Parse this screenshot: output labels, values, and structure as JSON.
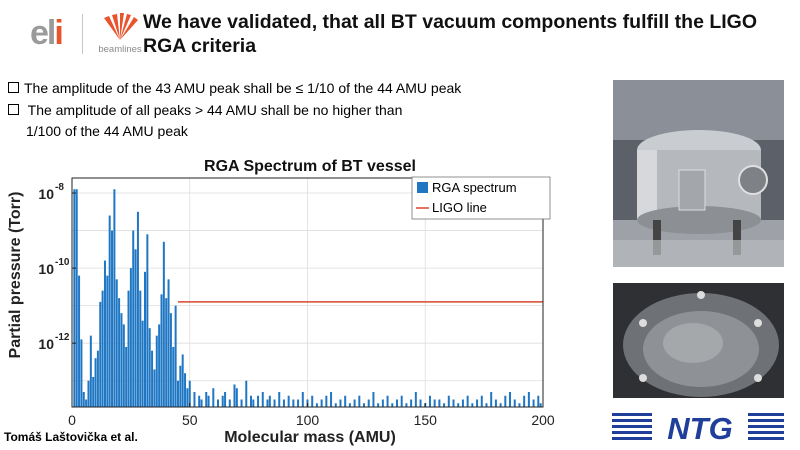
{
  "header": {
    "title": "We have validated, that all BT vacuum components fulfill the LIGO RGA criteria",
    "eli_logo_text_a": "el",
    "eli_logo_text_b": "i",
    "beamlines_label": "beamlines"
  },
  "bullets": [
    "The amplitude of the 43 AMU peak shall be  ≤ 1/10 of the 44 AMU peak",
    " The amplitude of all peaks > 44 AMU shall be  no higher than",
    "1/100 of the 44 AMU peak"
  ],
  "footer": {
    "author": "Tomáš Laštovička et al.",
    "ntg_logo": "NTG"
  },
  "colors": {
    "bars": "#1f77c4",
    "ligo_line": "#d9472b",
    "eli_accent": "#e8542c"
  },
  "chart_data": {
    "type": "bar",
    "title": "RGA Spectrum of BT vessel",
    "xlabel": "Molecular mass (AMU)",
    "ylabel": "Partial pressure (Torr)",
    "xlim": [
      0,
      200
    ],
    "ylim_log10": [
      -13.7,
      -7.6
    ],
    "y_scale": "log",
    "x_ticks": [
      "0",
      "50",
      "100",
      "150",
      "200"
    ],
    "y_ticks": [
      {
        "label": "10",
        "exp": "-8"
      },
      {
        "label": "10",
        "exp": "-10"
      },
      {
        "label": "10",
        "exp": "-12"
      }
    ],
    "grid": true,
    "legend": "top-right",
    "series": [
      {
        "name": "RGA spectrum",
        "kind": "bar",
        "x": [
          1,
          2,
          3,
          4,
          5,
          6,
          7,
          8,
          9,
          10,
          11,
          12,
          13,
          14,
          15,
          16,
          17,
          18,
          19,
          20,
          21,
          22,
          23,
          24,
          25,
          26,
          27,
          28,
          29,
          30,
          31,
          32,
          33,
          34,
          35,
          36,
          37,
          38,
          39,
          40,
          41,
          42,
          43,
          44,
          45,
          46,
          47,
          48,
          49,
          50,
          52,
          54,
          55,
          57,
          58,
          60,
          62,
          64,
          65,
          67,
          69,
          70,
          72,
          74,
          76,
          77,
          79,
          81,
          83,
          84,
          86,
          88,
          90,
          92,
          94,
          96,
          98,
          100,
          102,
          104,
          106,
          108,
          110,
          112,
          114,
          116,
          118,
          120,
          122,
          124,
          126,
          128,
          130,
          132,
          134,
          136,
          138,
          140,
          142,
          144,
          146,
          148,
          150,
          152,
          154,
          156,
          158,
          160,
          162,
          164,
          166,
          168,
          170,
          172,
          174,
          176,
          178,
          180,
          182,
          184,
          186,
          188,
          190,
          192,
          194,
          196,
          198,
          199
        ],
        "log10_values": [
          -7.9,
          -7.9,
          -10.2,
          -11.9,
          -13.3,
          -13.5,
          -13.0,
          -11.8,
          -12.9,
          -12.4,
          -12.2,
          -10.9,
          -10.6,
          -9.8,
          -10.2,
          -8.6,
          -9.0,
          -7.9,
          -10.3,
          -10.8,
          -11.2,
          -11.5,
          -12.1,
          -10.6,
          -10.0,
          -9.0,
          -9.5,
          -8.5,
          -10.6,
          -11.4,
          -10.1,
          -9.1,
          -11.6,
          -12.2,
          -12.7,
          -11.8,
          -11.5,
          -10.7,
          -9.3,
          -10.8,
          -10.3,
          -11.2,
          -12.1,
          -11.0,
          -13.0,
          -12.6,
          -12.3,
          -12.8,
          -13.2,
          -13.0,
          -13.3,
          -13.4,
          -13.5,
          -13.3,
          -13.4,
          -13.2,
          -13.5,
          -13.4,
          -13.3,
          -13.5,
          -13.1,
          -13.2,
          -13.5,
          -13.0,
          -13.4,
          -13.5,
          -13.4,
          -13.3,
          -13.5,
          -13.4,
          -13.5,
          -13.3,
          -13.5,
          -13.4,
          -13.5,
          -13.5,
          -13.3,
          -13.5,
          -13.4,
          -13.6,
          -13.5,
          -13.4,
          -13.3,
          -13.6,
          -13.5,
          -13.4,
          -13.6,
          -13.5,
          -13.4,
          -13.6,
          -13.5,
          -13.3,
          -13.6,
          -13.5,
          -13.4,
          -13.6,
          -13.5,
          -13.4,
          -13.6,
          -13.5,
          -13.3,
          -13.5,
          -13.6,
          -13.4,
          -13.5,
          -13.5,
          -13.6,
          -13.4,
          -13.5,
          -13.6,
          -13.5,
          -13.4,
          -13.6,
          -13.5,
          -13.4,
          -13.6,
          -13.3,
          -13.5,
          -13.6,
          -13.4,
          -13.3,
          -13.5,
          -13.6,
          -13.4,
          -13.3,
          -13.5,
          -13.4,
          -13.6
        ]
      },
      {
        "name": "LIGO line",
        "kind": "line",
        "x": [
          45,
          200
        ],
        "log10_values": [
          -10.9,
          -10.9
        ]
      }
    ]
  }
}
